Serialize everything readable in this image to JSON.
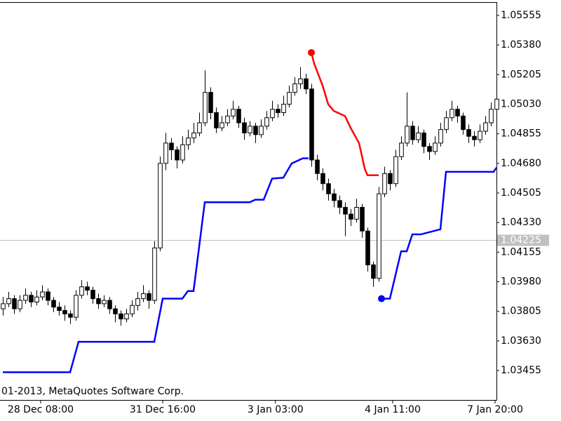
{
  "chart_data": {
    "type": "candlestick",
    "annotation": "01-2013, MetaQuotes Software Corp.",
    "xlim": [
      -0.5,
      88
    ],
    "xticks": [
      {
        "value": 6.75,
        "label": "28 Dec 08:00"
      },
      {
        "value": 28.5,
        "label": "31 Dec 16:00"
      },
      {
        "value": 48.6,
        "label": "3 Jan 03:00"
      },
      {
        "value": 69.5,
        "label": "4 Jan 11:00"
      },
      {
        "value": 87.75,
        "label": "7 Jan 20:00"
      }
    ],
    "ylim": [
      1.03281,
      1.05646
    ],
    "yticks": [
      1.05555,
      {
        "value": 1.0538,
        "label": "1.05380"
      },
      1.05205,
      {
        "value": 1.0503,
        "label": "1.05030"
      },
      1.04855,
      {
        "value": 1.0468,
        "label": "1.04680"
      },
      1.04505,
      {
        "value": 1.0433,
        "label": "1.04330"
      },
      1.04155,
      {
        "value": 1.0398,
        "label": "1.03980"
      },
      1.03805,
      {
        "value": 1.0363,
        "label": "1.03630"
      },
      1.03455
    ],
    "current_price": 1.04225,
    "up_color": "#ffffff",
    "down_color": "#000000",
    "ohlc": [
      [
        1.0382,
        1.0389,
        1.0378,
        1.0385
      ],
      [
        1.0385,
        1.0392,
        1.0383,
        1.0388
      ],
      [
        1.0388,
        1.039,
        1.0379,
        1.0382
      ],
      [
        1.0382,
        1.039,
        1.038,
        1.0387
      ],
      [
        1.0387,
        1.0394,
        1.0385,
        1.039
      ],
      [
        1.039,
        1.0392,
        1.0383,
        1.0386
      ],
      [
        1.0386,
        1.0393,
        1.0384,
        1.0389
      ],
      [
        1.0389,
        1.0396,
        1.0387,
        1.0392
      ],
      [
        1.0392,
        1.0394,
        1.0384,
        1.0387
      ],
      [
        1.0387,
        1.0389,
        1.038,
        1.0383
      ],
      [
        1.0383,
        1.0386,
        1.0378,
        1.0381
      ],
      [
        1.0381,
        1.0384,
        1.0375,
        1.0379
      ],
      [
        1.0379,
        1.0381,
        1.0373,
        1.0377
      ],
      [
        1.0377,
        1.0393,
        1.0375,
        1.039
      ],
      [
        1.039,
        1.0399,
        1.0388,
        1.0395
      ],
      [
        1.0395,
        1.0398,
        1.039,
        1.0393
      ],
      [
        1.0393,
        1.0395,
        1.0385,
        1.0388
      ],
      [
        1.0388,
        1.0391,
        1.0382,
        1.0385
      ],
      [
        1.0385,
        1.039,
        1.0383,
        1.0387
      ],
      [
        1.0387,
        1.0389,
        1.0379,
        1.0382
      ],
      [
        1.0382,
        1.0384,
        1.0374,
        1.0379
      ],
      [
        1.0379,
        1.0381,
        1.0372,
        1.0376
      ],
      [
        1.0376,
        1.0382,
        1.0374,
        1.0379
      ],
      [
        1.0379,
        1.0387,
        1.0377,
        1.0384
      ],
      [
        1.0384,
        1.0392,
        1.0381,
        1.0388
      ],
      [
        1.0388,
        1.0396,
        1.0386,
        1.0391
      ],
      [
        1.0391,
        1.0393,
        1.0382,
        1.0387
      ],
      [
        1.0387,
        1.0422,
        1.0385,
        1.0418
      ],
      [
        1.0418,
        1.0472,
        1.0416,
        1.0468
      ],
      [
        1.0468,
        1.0486,
        1.0464,
        1.048
      ],
      [
        1.048,
        1.0483,
        1.047,
        1.0476
      ],
      [
        1.0476,
        1.0478,
        1.0465,
        1.047
      ],
      [
        1.047,
        1.0484,
        1.0468,
        1.0479
      ],
      [
        1.0479,
        1.0488,
        1.0476,
        1.0483
      ],
      [
        1.0483,
        1.0492,
        1.048,
        1.0486
      ],
      [
        1.0486,
        1.0498,
        1.0484,
        1.0492
      ],
      [
        1.0492,
        1.0523,
        1.049,
        1.051
      ],
      [
        1.051,
        1.0513,
        1.0494,
        1.0498
      ],
      [
        1.0498,
        1.0501,
        1.0486,
        1.0489
      ],
      [
        1.0489,
        1.0496,
        1.0487,
        1.0492
      ],
      [
        1.0492,
        1.05,
        1.049,
        1.0496
      ],
      [
        1.0496,
        1.0505,
        1.0494,
        1.05
      ],
      [
        1.05,
        1.0502,
        1.0489,
        1.0492
      ],
      [
        1.0492,
        1.0495,
        1.0482,
        1.0486
      ],
      [
        1.0486,
        1.0493,
        1.0484,
        1.049
      ],
      [
        1.049,
        1.0492,
        1.048,
        1.0485
      ],
      [
        1.0485,
        1.0494,
        1.0483,
        1.049
      ],
      [
        1.049,
        1.0499,
        1.0488,
        1.0495
      ],
      [
        1.0495,
        1.0505,
        1.0493,
        1.05
      ],
      [
        1.05,
        1.0503,
        1.0495,
        1.0498
      ],
      [
        1.0498,
        1.0508,
        1.0496,
        1.0503
      ],
      [
        1.0503,
        1.0514,
        1.0501,
        1.051
      ],
      [
        1.051,
        1.0519,
        1.0508,
        1.0515
      ],
      [
        1.0515,
        1.0525,
        1.0512,
        1.0518
      ],
      [
        1.0518,
        1.0521,
        1.0509,
        1.0512
      ],
      [
        1.0512,
        1.0515,
        1.0466,
        1.047
      ],
      [
        1.047,
        1.0473,
        1.0458,
        1.0462
      ],
      [
        1.0462,
        1.0465,
        1.0452,
        1.0456
      ],
      [
        1.0456,
        1.0459,
        1.0446,
        1.045
      ],
      [
        1.045,
        1.0453,
        1.0442,
        1.0446
      ],
      [
        1.0446,
        1.0449,
        1.0438,
        1.0442
      ],
      [
        1.0442,
        1.0445,
        1.0425,
        1.0438
      ],
      [
        1.0438,
        1.0441,
        1.0431,
        1.0435
      ],
      [
        1.0435,
        1.0447,
        1.0433,
        1.0442
      ],
      [
        1.0442,
        1.0444,
        1.0424,
        1.0428
      ],
      [
        1.0428,
        1.043,
        1.0404,
        1.0408
      ],
      [
        1.0408,
        1.041,
        1.0395,
        1.04
      ],
      [
        1.04,
        1.0454,
        1.0398,
        1.045
      ],
      [
        1.045,
        1.0466,
        1.0448,
        1.0462
      ],
      [
        1.0462,
        1.0464,
        1.0452,
        1.0456
      ],
      [
        1.0456,
        1.0476,
        1.0454,
        1.0472
      ],
      [
        1.0472,
        1.0484,
        1.047,
        1.048
      ],
      [
        1.048,
        1.051,
        1.0478,
        1.049
      ],
      [
        1.049,
        1.0493,
        1.0479,
        1.0482
      ],
      [
        1.0482,
        1.049,
        1.048,
        1.0486
      ],
      [
        1.0486,
        1.0488,
        1.0474,
        1.0478
      ],
      [
        1.0478,
        1.048,
        1.047,
        1.0475
      ],
      [
        1.0475,
        1.0484,
        1.0473,
        1.048
      ],
      [
        1.048,
        1.0492,
        1.0478,
        1.0488
      ],
      [
        1.0488,
        1.0499,
        1.0486,
        1.0495
      ],
      [
        1.0495,
        1.0505,
        1.0493,
        1.05
      ],
      [
        1.05,
        1.0502,
        1.0492,
        1.0496
      ],
      [
        1.0496,
        1.0498,
        1.0485,
        1.0488
      ],
      [
        1.0488,
        1.0491,
        1.048,
        1.0484
      ],
      [
        1.0484,
        1.0487,
        1.0478,
        1.0482
      ],
      [
        1.0482,
        1.0491,
        1.048,
        1.0487
      ],
      [
        1.0487,
        1.0496,
        1.0485,
        1.0492
      ],
      [
        1.0492,
        1.0504,
        1.049,
        1.05
      ],
      [
        1.05,
        1.051,
        1.0498,
        1.0506
      ]
    ],
    "series": [
      {
        "color": "#0000ff",
        "x": [
          0,
          12,
          13.5,
          27,
          28.5,
          32,
          33,
          34,
          36,
          44,
          45,
          46.5,
          48,
          50,
          51.5,
          53.5,
          54.5,
          null,
          67.5,
          69,
          71,
          72,
          73,
          74.5,
          78,
          79,
          87.5,
          88
        ],
        "values": [
          1.03445,
          1.03445,
          1.03625,
          1.03625,
          1.0388,
          1.0388,
          1.03925,
          1.03925,
          1.0445,
          1.0445,
          1.04465,
          1.04465,
          1.0459,
          1.04595,
          1.0468,
          1.0471,
          1.0471,
          null,
          1.0388,
          1.0388,
          1.0416,
          1.0416,
          1.0426,
          1.0426,
          1.0429,
          1.0463,
          1.0463,
          1.04655
        ]
      },
      {
        "color": "#ff0000",
        "x": [
          55,
          55.5,
          57,
          58,
          59,
          61,
          62,
          63.5,
          64.5,
          65,
          67
        ],
        "values": [
          1.05335,
          1.0527,
          1.0514,
          1.0503,
          1.0499,
          1.0496,
          1.0489,
          1.048,
          1.0465,
          1.0461,
          1.0461
        ]
      }
    ],
    "markers": {
      "x": [
        55,
        67.5
      ],
      "values": [
        1.05335,
        1.0388
      ],
      "colors": [
        "#ff0000",
        "#0000ff"
      ]
    }
  }
}
